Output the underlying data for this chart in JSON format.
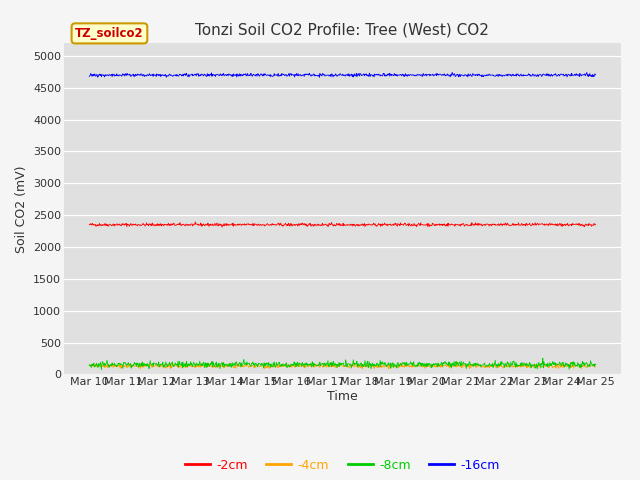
{
  "title": "Tonzi Soil CO2 Profile: Tree (West) CO2",
  "ylabel": "Soil CO2 (mV)",
  "xlabel": "Time",
  "legend_label": "TZ_soilco2",
  "tick_labels": [
    "Mar 10",
    "Mar 11",
    "Mar 12",
    "Mar 13",
    "Mar 14",
    "Mar 15",
    "Mar 16",
    "Mar 17",
    "Mar 18",
    "Mar 19",
    "Mar 20",
    "Mar 21",
    "Mar 22",
    "Mar 23",
    "Mar 24",
    "Mar 25"
  ],
  "ylim": [
    0,
    5200
  ],
  "yticks": [
    0,
    500,
    1000,
    1500,
    2000,
    2500,
    3000,
    3500,
    4000,
    4500,
    5000
  ],
  "series": {
    "-2cm": {
      "color": "#ff0000",
      "mean": 2350,
      "noise": 12,
      "label": "-2cm"
    },
    "-4cm": {
      "color": "#ffa500",
      "mean": 130,
      "noise": 15,
      "label": "-4cm"
    },
    "-8cm": {
      "color": "#00cc00",
      "mean": 155,
      "noise": 25,
      "label": "-8cm"
    },
    "-16cm": {
      "color": "#0000ff",
      "mean": 4700,
      "noise": 12,
      "label": "-16cm"
    }
  },
  "n_points": 1000,
  "bg_color": "#e8e8e8",
  "plot_bg": "#e0e0e0",
  "fig_bg": "#f5f5f5",
  "title_fontsize": 11,
  "axis_label_fontsize": 9,
  "tick_fontsize": 8,
  "legend_box_facecolor": "#ffffcc",
  "legend_box_edgecolor": "#cc9900"
}
